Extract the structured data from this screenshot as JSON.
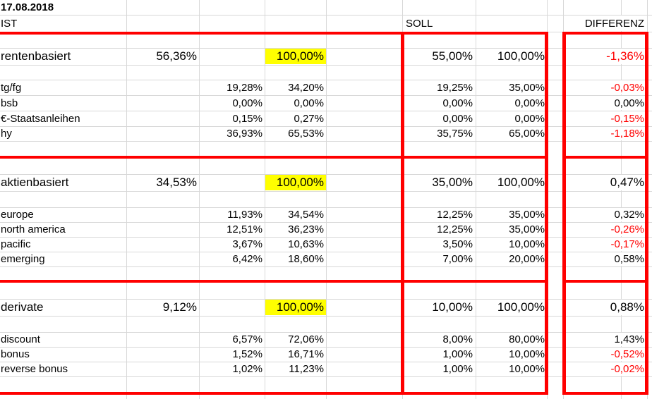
{
  "date": "17.08.2018",
  "columns": {
    "ist": "IST",
    "soll": "SOLL",
    "differenz": "DIFFERENZ"
  },
  "colors": {
    "section_border": "#ff0000",
    "negative_value": "#ff0000",
    "highlight": "#ffff00",
    "gridline": "#d8d8d8"
  },
  "sections": [
    {
      "category": {
        "label": "rentenbasiert",
        "ist_total": "56,36%",
        "ist_share": "100,00%",
        "soll_total": "55,00%",
        "soll_share": "100,00%",
        "diff": "-1,36%",
        "diff_sign": "negative"
      },
      "items": [
        {
          "label": "tg/fg",
          "ist": "19,28%",
          "ist_share": "34,20%",
          "soll": "19,25%",
          "soll_share": "35,00%",
          "diff": "-0,03%",
          "diff_sign": "negative"
        },
        {
          "label": "bsb",
          "ist": "0,00%",
          "ist_share": "0,00%",
          "soll": "0,00%",
          "soll_share": "0,00%",
          "diff": "0,00%",
          "diff_sign": "neutral"
        },
        {
          "label": "€-Staatsanleihen",
          "ist": "0,15%",
          "ist_share": "0,27%",
          "soll": "0,00%",
          "soll_share": "0,00%",
          "diff": "-0,15%",
          "diff_sign": "negative"
        },
        {
          "label": "hy",
          "ist": "36,93%",
          "ist_share": "65,53%",
          "soll": "35,75%",
          "soll_share": "65,00%",
          "diff": "-1,18%",
          "diff_sign": "negative"
        }
      ]
    },
    {
      "category": {
        "label": "aktienbasiert",
        "ist_total": "34,53%",
        "ist_share": "100,00%",
        "soll_total": "35,00%",
        "soll_share": "100,00%",
        "diff": "0,47%",
        "diff_sign": "positive"
      },
      "items": [
        {
          "label": "europe",
          "ist": "11,93%",
          "ist_share": "34,54%",
          "soll": "12,25%",
          "soll_share": "35,00%",
          "diff": "0,32%",
          "diff_sign": "positive"
        },
        {
          "label": "north america",
          "ist": "12,51%",
          "ist_share": "36,23%",
          "soll": "12,25%",
          "soll_share": "35,00%",
          "diff": "-0,26%",
          "diff_sign": "negative"
        },
        {
          "label": "pacific",
          "ist": "3,67%",
          "ist_share": "10,63%",
          "soll": "3,50%",
          "soll_share": "10,00%",
          "diff": "-0,17%",
          "diff_sign": "negative"
        },
        {
          "label": "emerging",
          "ist": "6,42%",
          "ist_share": "18,60%",
          "soll": "7,00%",
          "soll_share": "20,00%",
          "diff": "0,58%",
          "diff_sign": "positive"
        }
      ]
    },
    {
      "category": {
        "label": "derivate",
        "ist_total": "9,12%",
        "ist_share": "100,00%",
        "soll_total": "10,00%",
        "soll_share": "100,00%",
        "diff": "0,88%",
        "diff_sign": "positive"
      },
      "items": [
        {
          "label": "discount",
          "ist": "6,57%",
          "ist_share": "72,06%",
          "soll": "8,00%",
          "soll_share": "80,00%",
          "diff": "1,43%",
          "diff_sign": "positive"
        },
        {
          "label": "bonus",
          "ist": "1,52%",
          "ist_share": "16,71%",
          "soll": "1,00%",
          "soll_share": "10,00%",
          "diff": "-0,52%",
          "diff_sign": "negative"
        },
        {
          "label": "reverse bonus",
          "ist": "1,02%",
          "ist_share": "11,23%",
          "soll": "1,00%",
          "soll_share": "10,00%",
          "diff": "-0,02%",
          "diff_sign": "negative"
        }
      ]
    }
  ]
}
